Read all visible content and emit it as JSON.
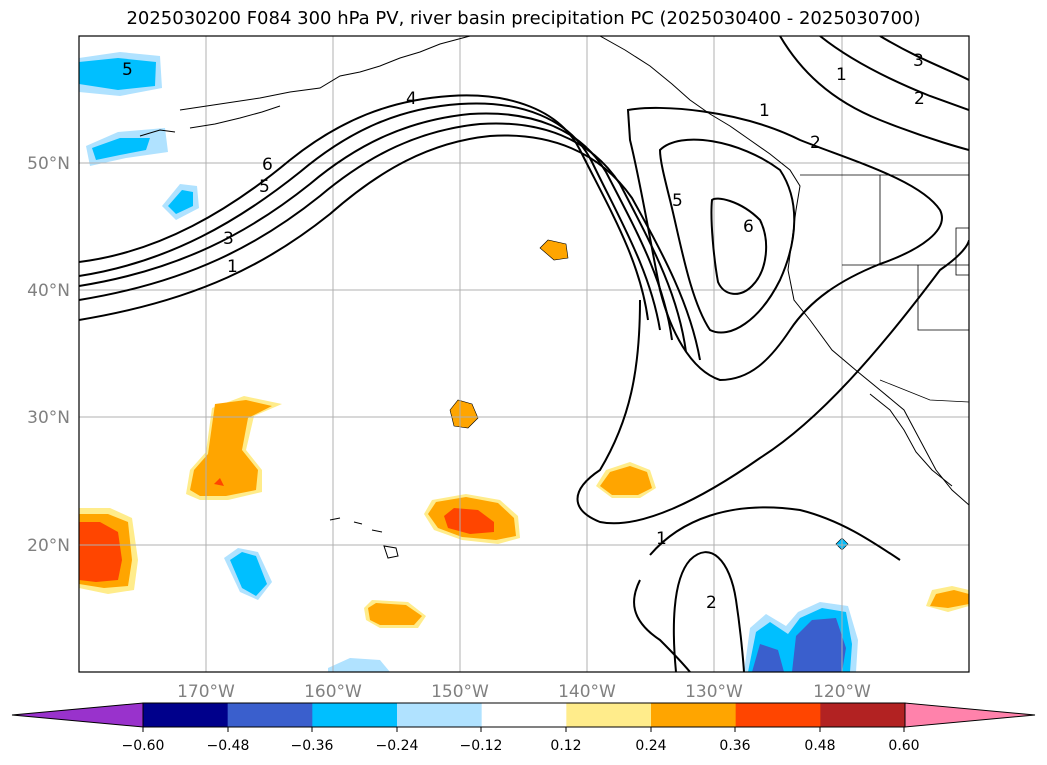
{
  "title": "2025030200 F084 300 hPa PV, river basin precipitation PC (2025030400 - 2025030700)",
  "map": {
    "lat_labels": [
      "50°N",
      "40°N",
      "30°N",
      "20°N"
    ],
    "lon_labels": [
      "170°W",
      "160°W",
      "150°W",
      "140°W",
      "130°W",
      "120°W"
    ],
    "contour_labels": [
      "5",
      "4",
      "6",
      "5",
      "3",
      "1",
      "1",
      "2",
      "3",
      "1",
      "2",
      "5",
      "6",
      "1",
      "2"
    ]
  },
  "colorbar": {
    "colors": [
      "#9932cc",
      "#00008b",
      "#3a5fcd",
      "#00bfff",
      "#b0e2ff",
      "#ffffff",
      "#ffec8b",
      "#ffa500",
      "#ff4500",
      "#b22222",
      "#ff82ab"
    ],
    "tick_labels": [
      "−0.60",
      "−0.48",
      "−0.36",
      "−0.24",
      "−0.12",
      "0.12",
      "0.24",
      "0.36",
      "0.48",
      "0.60"
    ]
  }
}
